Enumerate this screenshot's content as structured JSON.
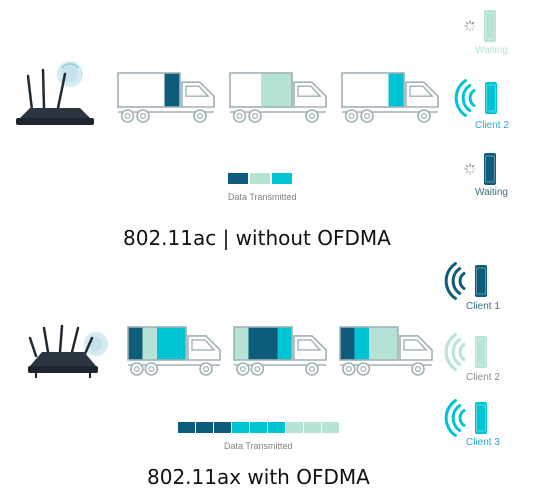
{
  "colors": {
    "dark": "#0e5c7c",
    "mid": "#00c4d3",
    "light": "#b7e3d6",
    "truck_outline": "#9fb1b6",
    "caption": "#111111",
    "label_active": "#2aa6c4",
    "label_grey": "#8a8a8a",
    "label_waiting": "#3e6e82"
  },
  "top": {
    "caption": "802.11ac | without OFDMA",
    "legend_label": "Data Transmitted",
    "clients": [
      {
        "label": "Waiting",
        "state": "waiting-faded",
        "icon": "phone-icon"
      },
      {
        "label": "Client 2",
        "state": "active",
        "icon": "phone-icon"
      },
      {
        "label": "Waiting",
        "state": "waiting",
        "icon": "phone-icon"
      }
    ],
    "trucks": [
      {
        "cargo": [
          "empty",
          "empty",
          "empty",
          "dark"
        ]
      },
      {
        "cargo": [
          "empty",
          "empty",
          "light",
          "light"
        ]
      },
      {
        "cargo": [
          "empty",
          "empty",
          "empty",
          "mid"
        ]
      }
    ],
    "legend_segments": [
      "dark",
      "light",
      "mid"
    ]
  },
  "bottom": {
    "caption": "802.11ax with OFDMA",
    "legend_label": "Data Transmitted",
    "clients": [
      {
        "label": "Client 1",
        "state": "dark",
        "icon": "phone-icon"
      },
      {
        "label": "Client 2",
        "state": "light",
        "icon": "phone-icon"
      },
      {
        "label": "Client 3",
        "state": "mid",
        "icon": "phone-icon"
      }
    ],
    "trucks": [
      {
        "cargo": [
          "dark",
          "light",
          "mid",
          "mid"
        ]
      },
      {
        "cargo": [
          "light",
          "dark",
          "dark",
          "mid"
        ]
      },
      {
        "cargo": [
          "dark",
          "mid",
          "light",
          "light"
        ]
      }
    ],
    "legend_segments": [
      "dark",
      "dark",
      "dark",
      "mid",
      "mid",
      "mid",
      "light",
      "light",
      "light"
    ]
  }
}
